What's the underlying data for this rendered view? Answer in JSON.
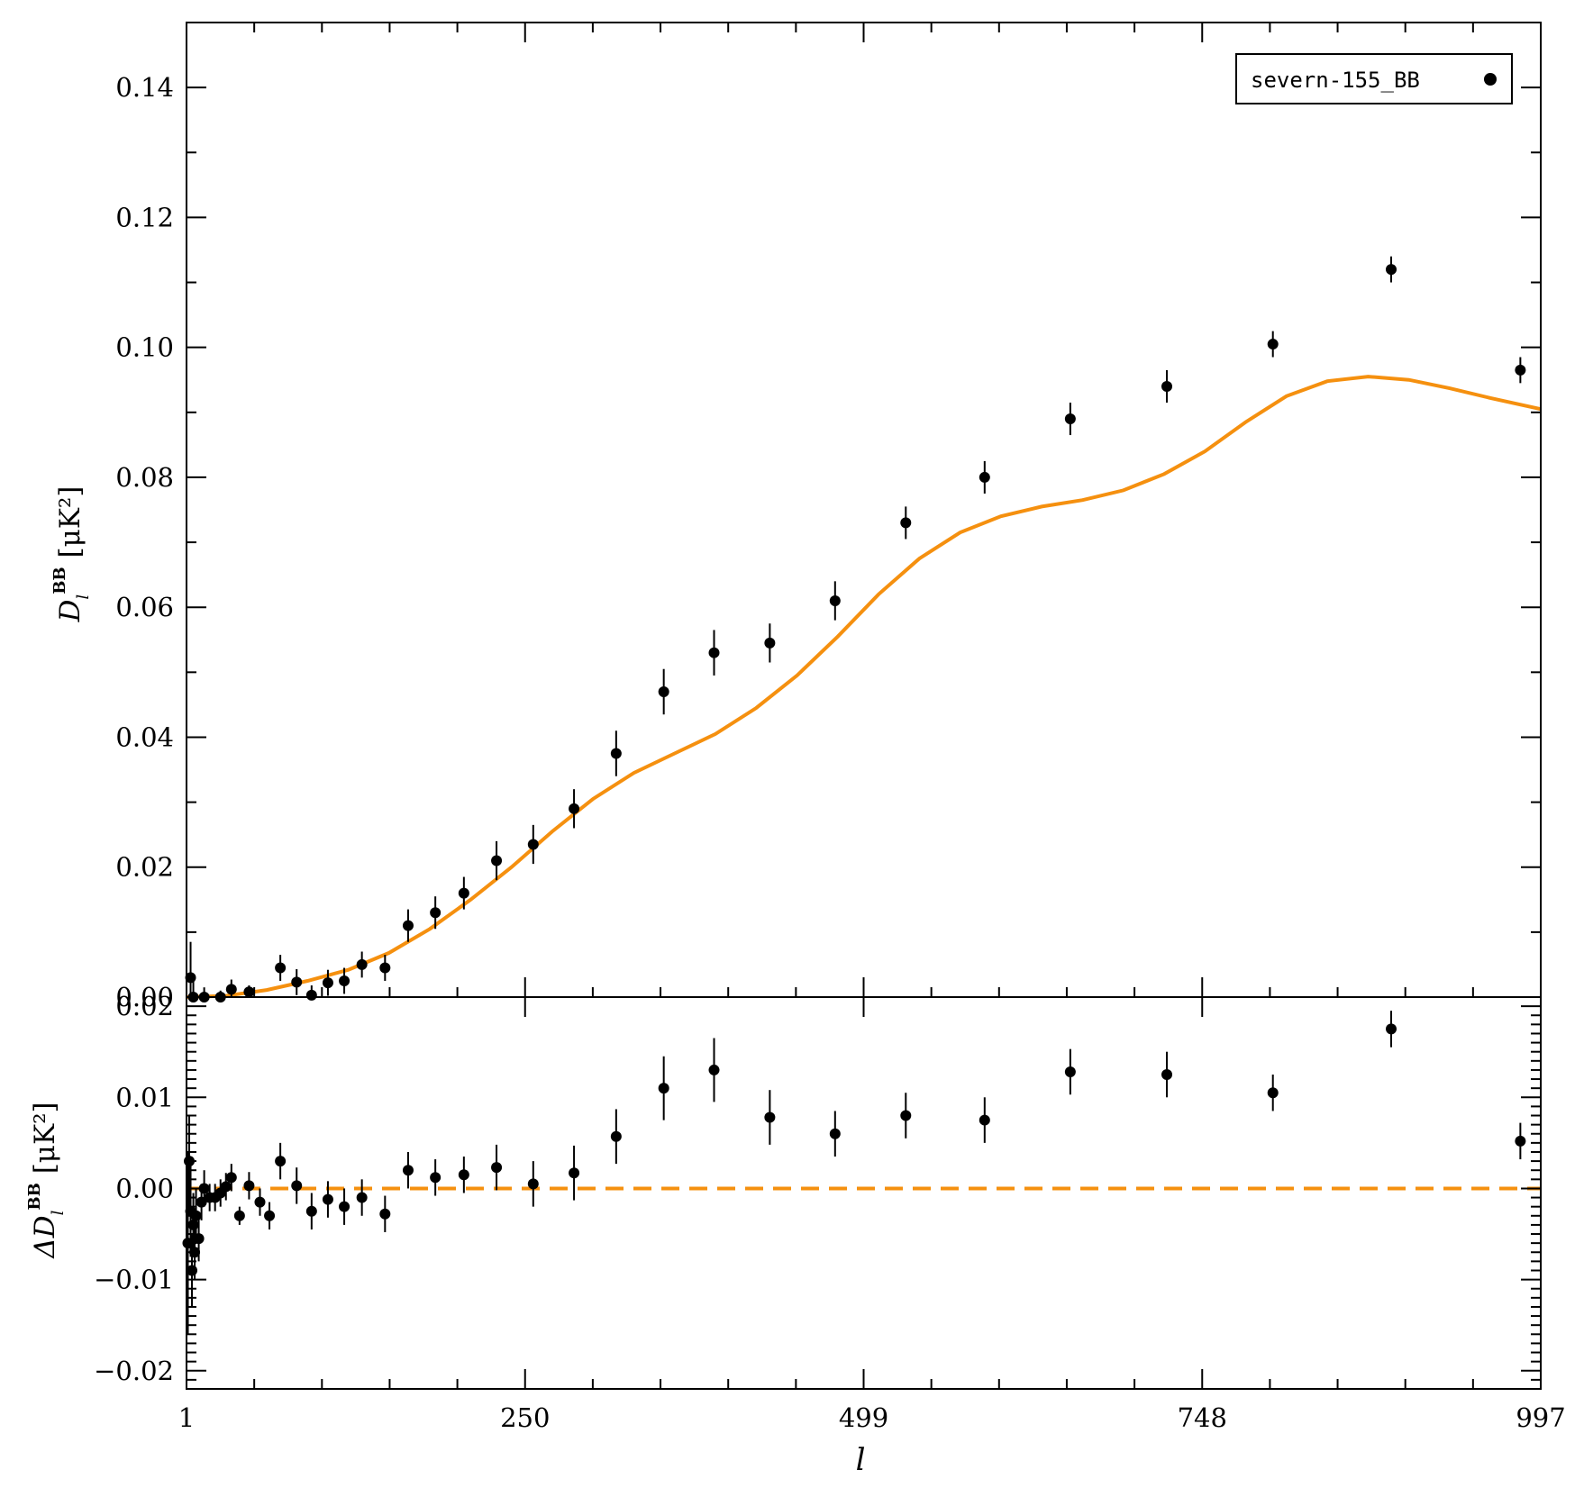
{
  "chart_data": [
    {
      "panel": "top",
      "type": "scatter",
      "ylabel_main": "D",
      "ylabel_sub": "l",
      "ylabel_sup": "BB",
      "ylabel_unit": " [μK²]",
      "xlim": [
        1,
        997
      ],
      "ylim": [
        0.0,
        0.15
      ],
      "yticks": [
        "0.00",
        "0.02",
        "0.04",
        "0.06",
        "0.08",
        "0.10",
        "0.12",
        "0.14"
      ],
      "legend": {
        "label": "severn-155_BB",
        "position": "top-right"
      },
      "colors": {
        "points": "#000000",
        "model": "#f5900f"
      },
      "series": [
        {
          "name": "severn-155_BB",
          "points": [
            {
              "x": 4,
              "y": 0.003,
              "err": 0.0055
            },
            {
              "x": 6,
              "y": 0.0,
              "err": 0.003
            },
            {
              "x": 14,
              "y": 0.0,
              "err": 0.0015
            },
            {
              "x": 26,
              "y": 0.0,
              "err": 0.001
            },
            {
              "x": 34,
              "y": 0.0012,
              "err": 0.0015
            },
            {
              "x": 47,
              "y": 0.0008,
              "err": 0.001
            },
            {
              "x": 70,
              "y": 0.0045,
              "err": 0.002
            },
            {
              "x": 82,
              "y": 0.0023,
              "err": 0.002
            },
            {
              "x": 93,
              "y": 0.0003,
              "err": 0.0015
            },
            {
              "x": 105,
              "y": 0.0022,
              "err": 0.002
            },
            {
              "x": 117,
              "y": 0.0025,
              "err": 0.002
            },
            {
              "x": 130,
              "y": 0.005,
              "err": 0.002
            },
            {
              "x": 147,
              "y": 0.0045,
              "err": 0.002
            },
            {
              "x": 164,
              "y": 0.011,
              "err": 0.0025
            },
            {
              "x": 184,
              "y": 0.013,
              "err": 0.0025
            },
            {
              "x": 205,
              "y": 0.016,
              "err": 0.0025
            },
            {
              "x": 229,
              "y": 0.021,
              "err": 0.003
            },
            {
              "x": 256,
              "y": 0.0235,
              "err": 0.003
            },
            {
              "x": 286,
              "y": 0.029,
              "err": 0.003
            },
            {
              "x": 317,
              "y": 0.0375,
              "err": 0.0035
            },
            {
              "x": 352,
              "y": 0.047,
              "err": 0.0035
            },
            {
              "x": 389,
              "y": 0.053,
              "err": 0.0035
            },
            {
              "x": 430,
              "y": 0.0545,
              "err": 0.003
            },
            {
              "x": 478,
              "y": 0.061,
              "err": 0.003
            },
            {
              "x": 530,
              "y": 0.073,
              "err": 0.0025
            },
            {
              "x": 588,
              "y": 0.08,
              "err": 0.0025
            },
            {
              "x": 651,
              "y": 0.089,
              "err": 0.0025
            },
            {
              "x": 722,
              "y": 0.094,
              "err": 0.0025
            },
            {
              "x": 800,
              "y": 0.1005,
              "err": 0.002
            },
            {
              "x": 887,
              "y": 0.112,
              "err": 0.002
            },
            {
              "x": 982,
              "y": 0.0965,
              "err": 0.002
            }
          ]
        },
        {
          "name": "",
          "type": "line",
          "points": [
            {
              "x": 1,
              "y": 0.0
            },
            {
              "x": 30,
              "y": 0.0002
            },
            {
              "x": 60,
              "y": 0.0011
            },
            {
              "x": 90,
              "y": 0.0025
            },
            {
              "x": 120,
              "y": 0.0042
            },
            {
              "x": 150,
              "y": 0.0068
            },
            {
              "x": 180,
              "y": 0.0105
            },
            {
              "x": 210,
              "y": 0.015
            },
            {
              "x": 240,
              "y": 0.02
            },
            {
              "x": 270,
              "y": 0.0255
            },
            {
              "x": 300,
              "y": 0.0305
            },
            {
              "x": 330,
              "y": 0.0345
            },
            {
              "x": 360,
              "y": 0.0375
            },
            {
              "x": 390,
              "y": 0.0405
            },
            {
              "x": 420,
              "y": 0.0445
            },
            {
              "x": 450,
              "y": 0.0495
            },
            {
              "x": 480,
              "y": 0.0555
            },
            {
              "x": 510,
              "y": 0.062
            },
            {
              "x": 540,
              "y": 0.0675
            },
            {
              "x": 570,
              "y": 0.0715
            },
            {
              "x": 600,
              "y": 0.074
            },
            {
              "x": 630,
              "y": 0.0755
            },
            {
              "x": 660,
              "y": 0.0765
            },
            {
              "x": 690,
              "y": 0.078
            },
            {
              "x": 720,
              "y": 0.0805
            },
            {
              "x": 750,
              "y": 0.084
            },
            {
              "x": 780,
              "y": 0.0885
            },
            {
              "x": 810,
              "y": 0.0925
            },
            {
              "x": 840,
              "y": 0.0948
            },
            {
              "x": 870,
              "y": 0.0955
            },
            {
              "x": 900,
              "y": 0.095
            },
            {
              "x": 930,
              "y": 0.0937
            },
            {
              "x": 960,
              "y": 0.0922
            },
            {
              "x": 997,
              "y": 0.0905
            }
          ]
        }
      ]
    },
    {
      "panel": "bottom",
      "type": "scatter",
      "ylabel_main": "ΔD",
      "ylabel_sub": "l",
      "ylabel_sup": "BB",
      "ylabel_unit": " [μK²]",
      "xlabel": "l",
      "xlim": [
        1,
        997
      ],
      "ylim": [
        -0.022,
        0.021
      ],
      "yticks": [
        "0.02",
        "0.01",
        "0.00",
        "−0.01",
        "−0.02"
      ],
      "xticks": [
        "1",
        "250",
        "499",
        "748",
        "997"
      ],
      "xtick_values": [
        1,
        250,
        499,
        748,
        997
      ],
      "series": [
        {
          "name": "",
          "points": [
            {
              "x": 2,
              "y": -0.006,
              "err": 0.01
            },
            {
              "x": 3,
              "y": 0.003,
              "err": 0.005
            },
            {
              "x": 4,
              "y": -0.0025,
              "err": 0.005
            },
            {
              "x": 5,
              "y": -0.009,
              "err": 0.004
            },
            {
              "x": 6,
              "y": -0.004,
              "err": 0.0035
            },
            {
              "x": 7,
              "y": -0.007,
              "err": 0.003
            },
            {
              "x": 8,
              "y": -0.003,
              "err": 0.003
            },
            {
              "x": 10,
              "y": -0.0055,
              "err": 0.0025
            },
            {
              "x": 12,
              "y": -0.0015,
              "err": 0.002
            },
            {
              "x": 14,
              "y": 0.0,
              "err": 0.002
            },
            {
              "x": 18,
              "y": -0.001,
              "err": 0.0015
            },
            {
              "x": 22,
              "y": -0.001,
              "err": 0.0015
            },
            {
              "x": 26,
              "y": -0.0005,
              "err": 0.0015
            },
            {
              "x": 30,
              "y": 0.0002,
              "err": 0.0015
            },
            {
              "x": 34,
              "y": 0.0012,
              "err": 0.0015
            },
            {
              "x": 40,
              "y": -0.003,
              "err": 0.001
            },
            {
              "x": 47,
              "y": 0.0003,
              "err": 0.0015
            },
            {
              "x": 55,
              "y": -0.0015,
              "err": 0.0015
            },
            {
              "x": 62,
              "y": -0.003,
              "err": 0.0015
            },
            {
              "x": 70,
              "y": 0.003,
              "err": 0.002
            },
            {
              "x": 82,
              "y": 0.0003,
              "err": 0.002
            },
            {
              "x": 93,
              "y": -0.0025,
              "err": 0.002
            },
            {
              "x": 105,
              "y": -0.0012,
              "err": 0.002
            },
            {
              "x": 117,
              "y": -0.002,
              "err": 0.002
            },
            {
              "x": 130,
              "y": -0.001,
              "err": 0.002
            },
            {
              "x": 147,
              "y": -0.0028,
              "err": 0.002
            },
            {
              "x": 164,
              "y": 0.002,
              "err": 0.002
            },
            {
              "x": 184,
              "y": 0.0012,
              "err": 0.002
            },
            {
              "x": 205,
              "y": 0.0015,
              "err": 0.002
            },
            {
              "x": 229,
              "y": 0.0023,
              "err": 0.0025
            },
            {
              "x": 256,
              "y": 0.0005,
              "err": 0.0025
            },
            {
              "x": 286,
              "y": 0.0017,
              "err": 0.003
            },
            {
              "x": 317,
              "y": 0.0057,
              "err": 0.003
            },
            {
              "x": 352,
              "y": 0.011,
              "err": 0.0035
            },
            {
              "x": 389,
              "y": 0.013,
              "err": 0.0035
            },
            {
              "x": 430,
              "y": 0.0078,
              "err": 0.003
            },
            {
              "x": 478,
              "y": 0.006,
              "err": 0.0025
            },
            {
              "x": 530,
              "y": 0.008,
              "err": 0.0025
            },
            {
              "x": 588,
              "y": 0.0075,
              "err": 0.0025
            },
            {
              "x": 651,
              "y": 0.0128,
              "err": 0.0025
            },
            {
              "x": 722,
              "y": 0.0125,
              "err": 0.0025
            },
            {
              "x": 800,
              "y": 0.0105,
              "err": 0.002
            },
            {
              "x": 887,
              "y": 0.0175,
              "err": 0.002
            },
            {
              "x": 982,
              "y": 0.0052,
              "err": 0.002
            }
          ]
        },
        {
          "name": "",
          "type": "line",
          "style": "dashed",
          "points": [
            {
              "x": 1,
              "y": 0.0
            },
            {
              "x": 997,
              "y": 0.0
            }
          ]
        }
      ]
    }
  ]
}
